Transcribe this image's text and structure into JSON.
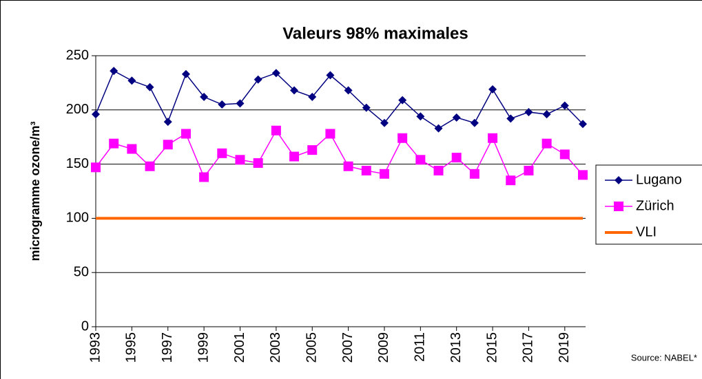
{
  "chart_data": {
    "type": "line",
    "title": "Valeurs 98% maximales",
    "y_label": "microgramme ozone/m³",
    "source": "Source: NABEL*",
    "x": [
      1993,
      1994,
      1995,
      1996,
      1997,
      1998,
      1999,
      2000,
      2001,
      2002,
      2003,
      2004,
      2005,
      2006,
      2007,
      2008,
      2009,
      2010,
      2011,
      2012,
      2013,
      2014,
      2015,
      2016,
      2017,
      2018,
      2019,
      2020
    ],
    "xlim": [
      1993,
      2020
    ],
    "xticks": [
      1993,
      1995,
      1997,
      1999,
      2001,
      2003,
      2005,
      2007,
      2009,
      2011,
      2013,
      2015,
      2017,
      2019
    ],
    "ylim": [
      0,
      250
    ],
    "yticks": [
      0,
      50,
      100,
      150,
      200,
      250
    ],
    "grid": true,
    "legend": "right",
    "series": [
      {
        "name": "Lugano",
        "color": "#000080",
        "marker": "diamond",
        "values": [
          196,
          236,
          227,
          221,
          189,
          233,
          212,
          205,
          206,
          228,
          234,
          218,
          212,
          232,
          218,
          202,
          188,
          209,
          194,
          183,
          193,
          188,
          219,
          192,
          198,
          196,
          204,
          187
        ]
      },
      {
        "name": "Zürich",
        "color": "#ff00ff",
        "marker": "square",
        "values": [
          147,
          169,
          164,
          148,
          168,
          178,
          138,
          160,
          154,
          151,
          181,
          157,
          163,
          178,
          148,
          144,
          141,
          174,
          154,
          144,
          156,
          141,
          174,
          135,
          144,
          169,
          159,
          140
        ]
      },
      {
        "name": "VLI",
        "color": "#ff6600",
        "marker": "none",
        "values": [
          100,
          100,
          100,
          100,
          100,
          100,
          100,
          100,
          100,
          100,
          100,
          100,
          100,
          100,
          100,
          100,
          100,
          100,
          100,
          100,
          100,
          100,
          100,
          100,
          100,
          100,
          100,
          100
        ]
      }
    ]
  }
}
